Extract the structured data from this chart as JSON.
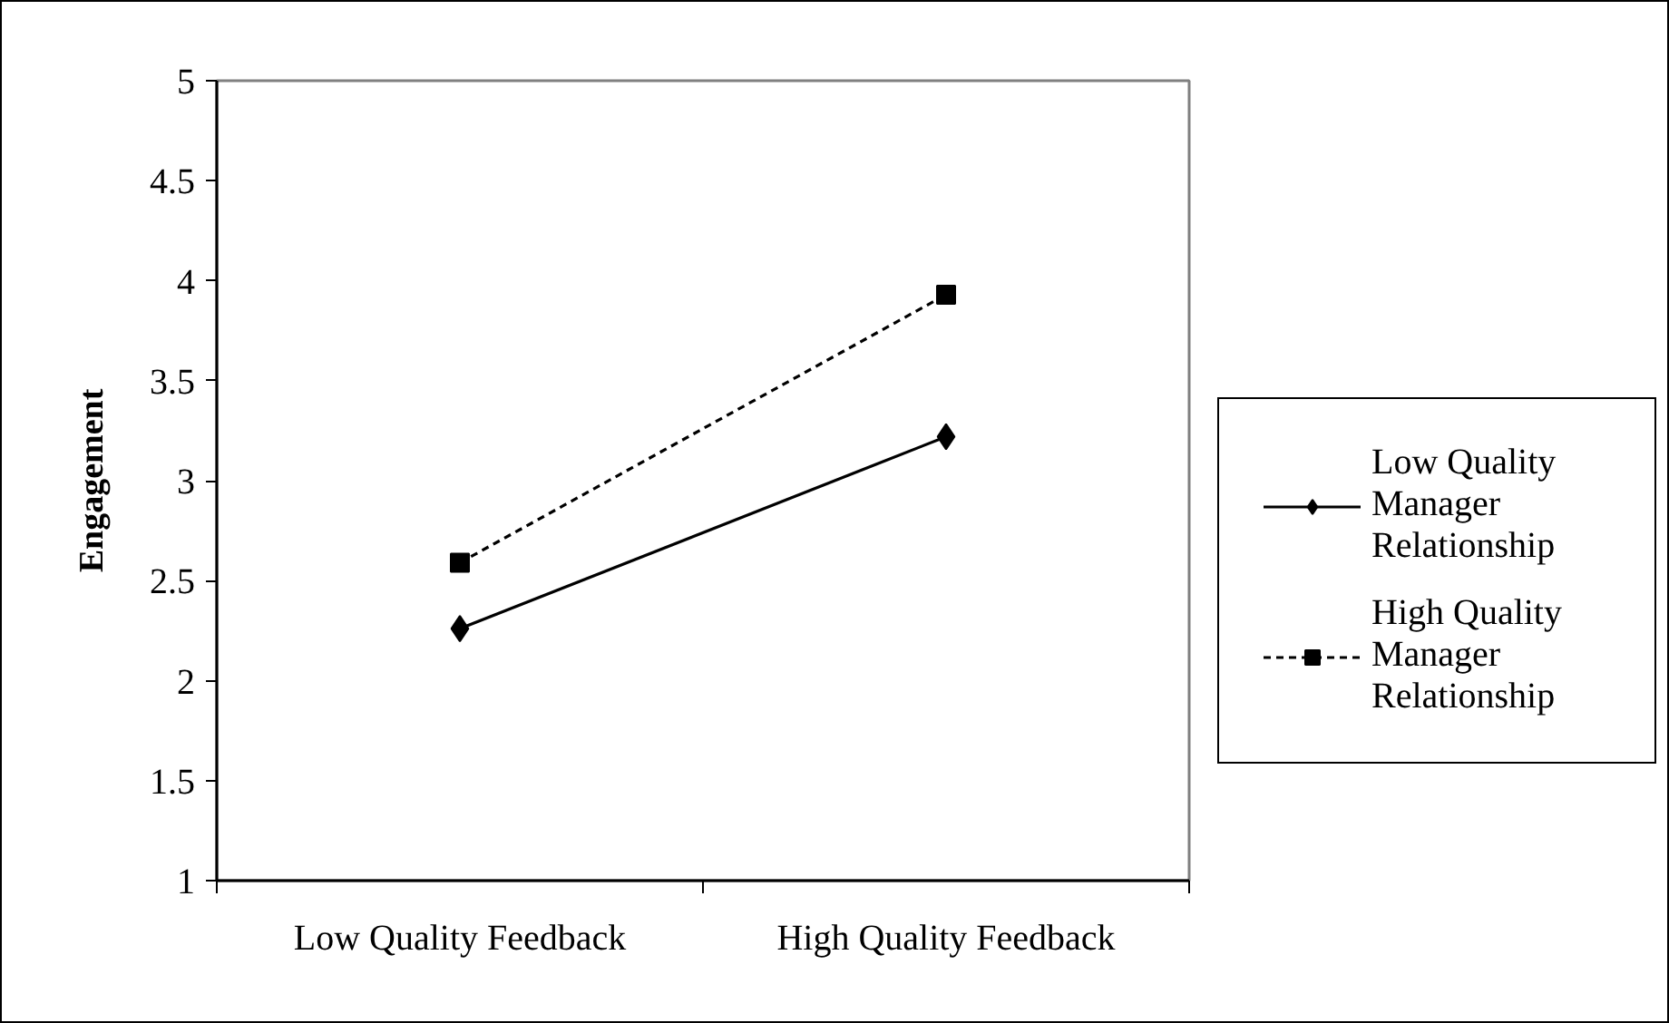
{
  "chart_data": {
    "type": "line",
    "ylabel": "Engagement",
    "categories": [
      "Low Quality Feedback",
      "High Quality Feedback"
    ],
    "series": [
      {
        "name": "Low Quality Manager Relationship",
        "color": "#000000",
        "values": [
          2.26,
          3.22
        ],
        "marker": "diamond",
        "line_style": "solid"
      },
      {
        "name": "High Quality Manager Relationship",
        "color": "#000000",
        "values": [
          2.59,
          3.93
        ],
        "marker": "square",
        "line_style": "dashed"
      }
    ],
    "ylim": [
      1,
      5
    ],
    "yticks": [
      1,
      1.5,
      2,
      2.5,
      3,
      3.5,
      4,
      4.5,
      5
    ],
    "grid": false,
    "legend": "right"
  }
}
